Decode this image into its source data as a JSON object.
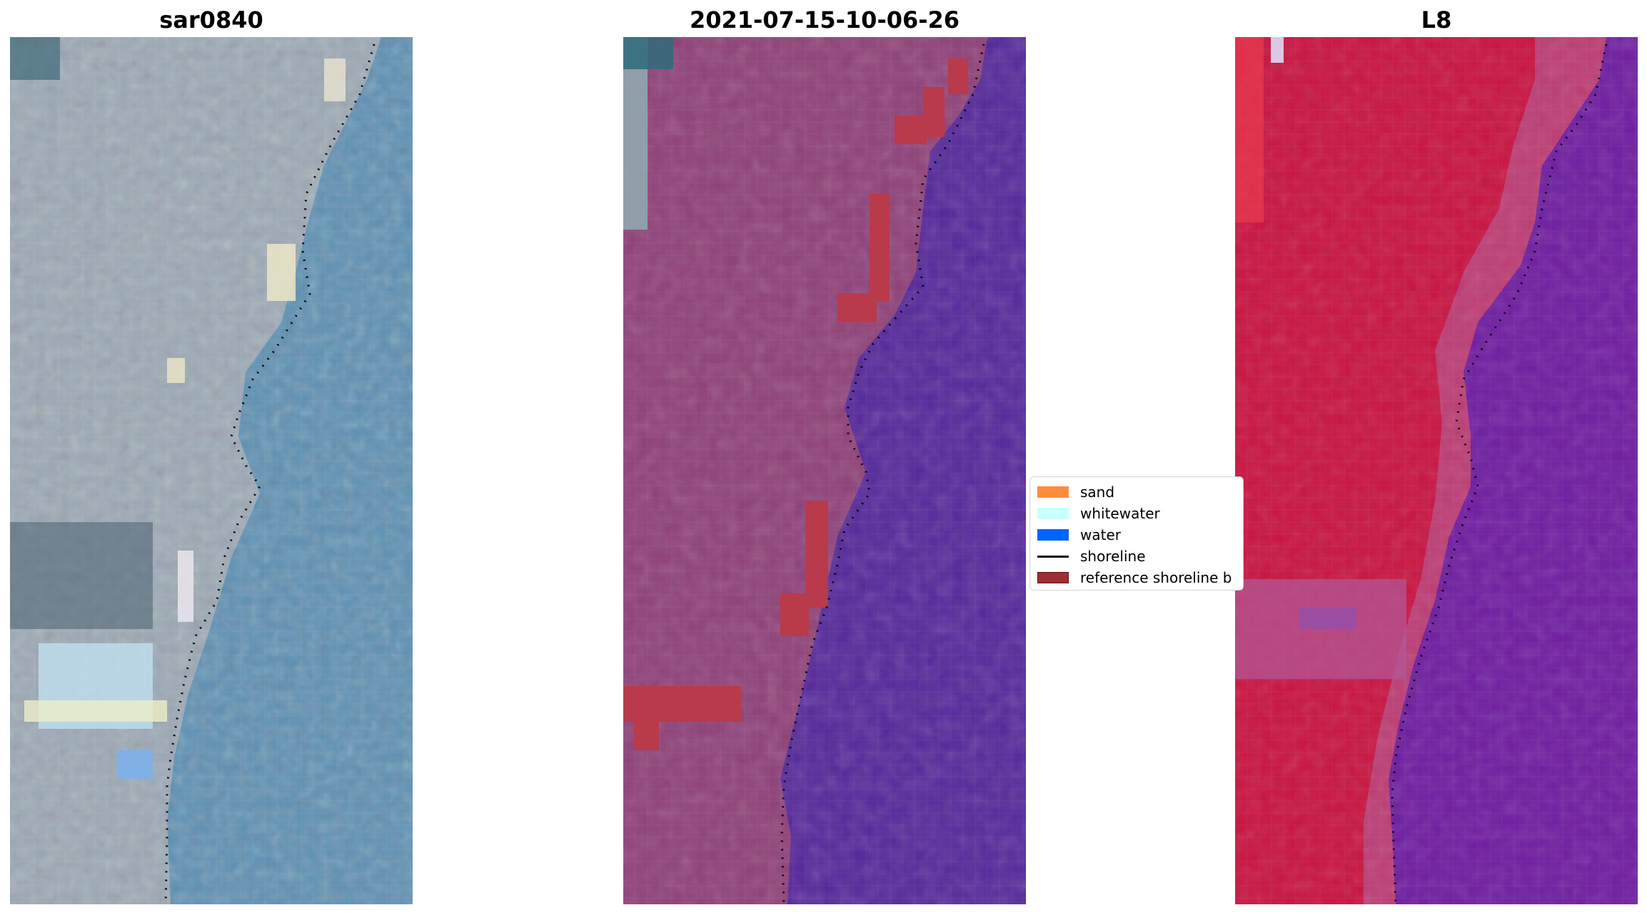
{
  "panels": [
    {
      "title": "sar0840",
      "kind": "rgb-image"
    },
    {
      "title": "2021-07-15-10-06-26",
      "kind": "classified-image"
    },
    {
      "title": "L8",
      "kind": "false-color-image"
    }
  ],
  "legend": {
    "items": [
      {
        "label": "sand",
        "color": "#ff8c3c"
      },
      {
        "label": "whitewater",
        "color": "#c8ffff"
      },
      {
        "label": "water",
        "color": "#0064ff"
      },
      {
        "label": "shoreline",
        "color": "#000000"
      },
      {
        "label": "reference shoreline b",
        "color": "#9e2e34"
      }
    ]
  },
  "colors": {
    "sea_rgb": "#5a8fb3",
    "land_rgb": "#9aa8b4",
    "land_classified": "#8e3f77",
    "sea_classified": "#54269a",
    "buffer": "#b93a4a",
    "land_l8": "#c8123f",
    "sea_l8": "#6e1ca0",
    "shoreline": "#000000"
  }
}
